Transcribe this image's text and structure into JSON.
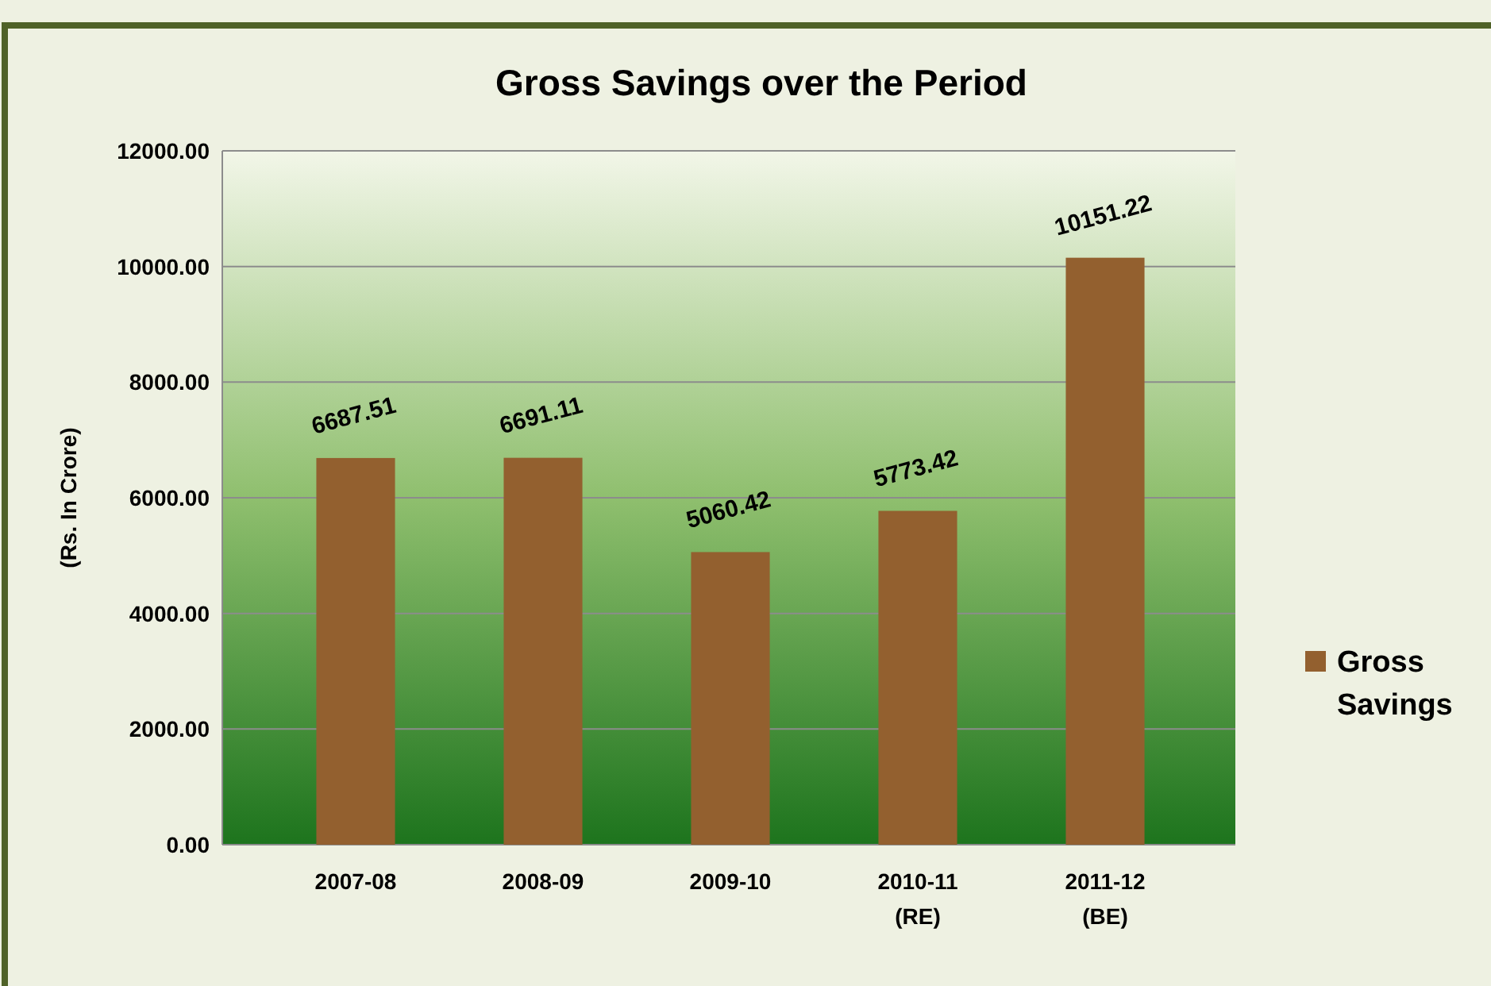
{
  "chart_data": {
    "type": "bar",
    "title": "Gross Savings over the Period",
    "ylabel": "(Rs. In Crore)",
    "categories": [
      "2007-08",
      "2008-09",
      "2009-10",
      "2010-11 (RE)",
      "2011-12 (BE)"
    ],
    "series": [
      {
        "name": "Gross Savings",
        "color": "#93602f",
        "values": [
          6687.51,
          6691.11,
          5060.42,
          5773.42,
          10151.22
        ]
      }
    ],
    "ylim": [
      0,
      12000
    ],
    "yticks": [
      {
        "value": 0,
        "label": "0.00"
      },
      {
        "value": 2000,
        "label": "2000.00"
      },
      {
        "value": 4000,
        "label": "4000.00"
      },
      {
        "value": 6000,
        "label": "6000.00"
      },
      {
        "value": 8000,
        "label": "8000.00"
      },
      {
        "value": 10000,
        "label": "10000.00"
      },
      {
        "value": 12000,
        "label": "12000.00"
      }
    ],
    "grid": "y",
    "legend": "right",
    "data_labels": true
  }
}
